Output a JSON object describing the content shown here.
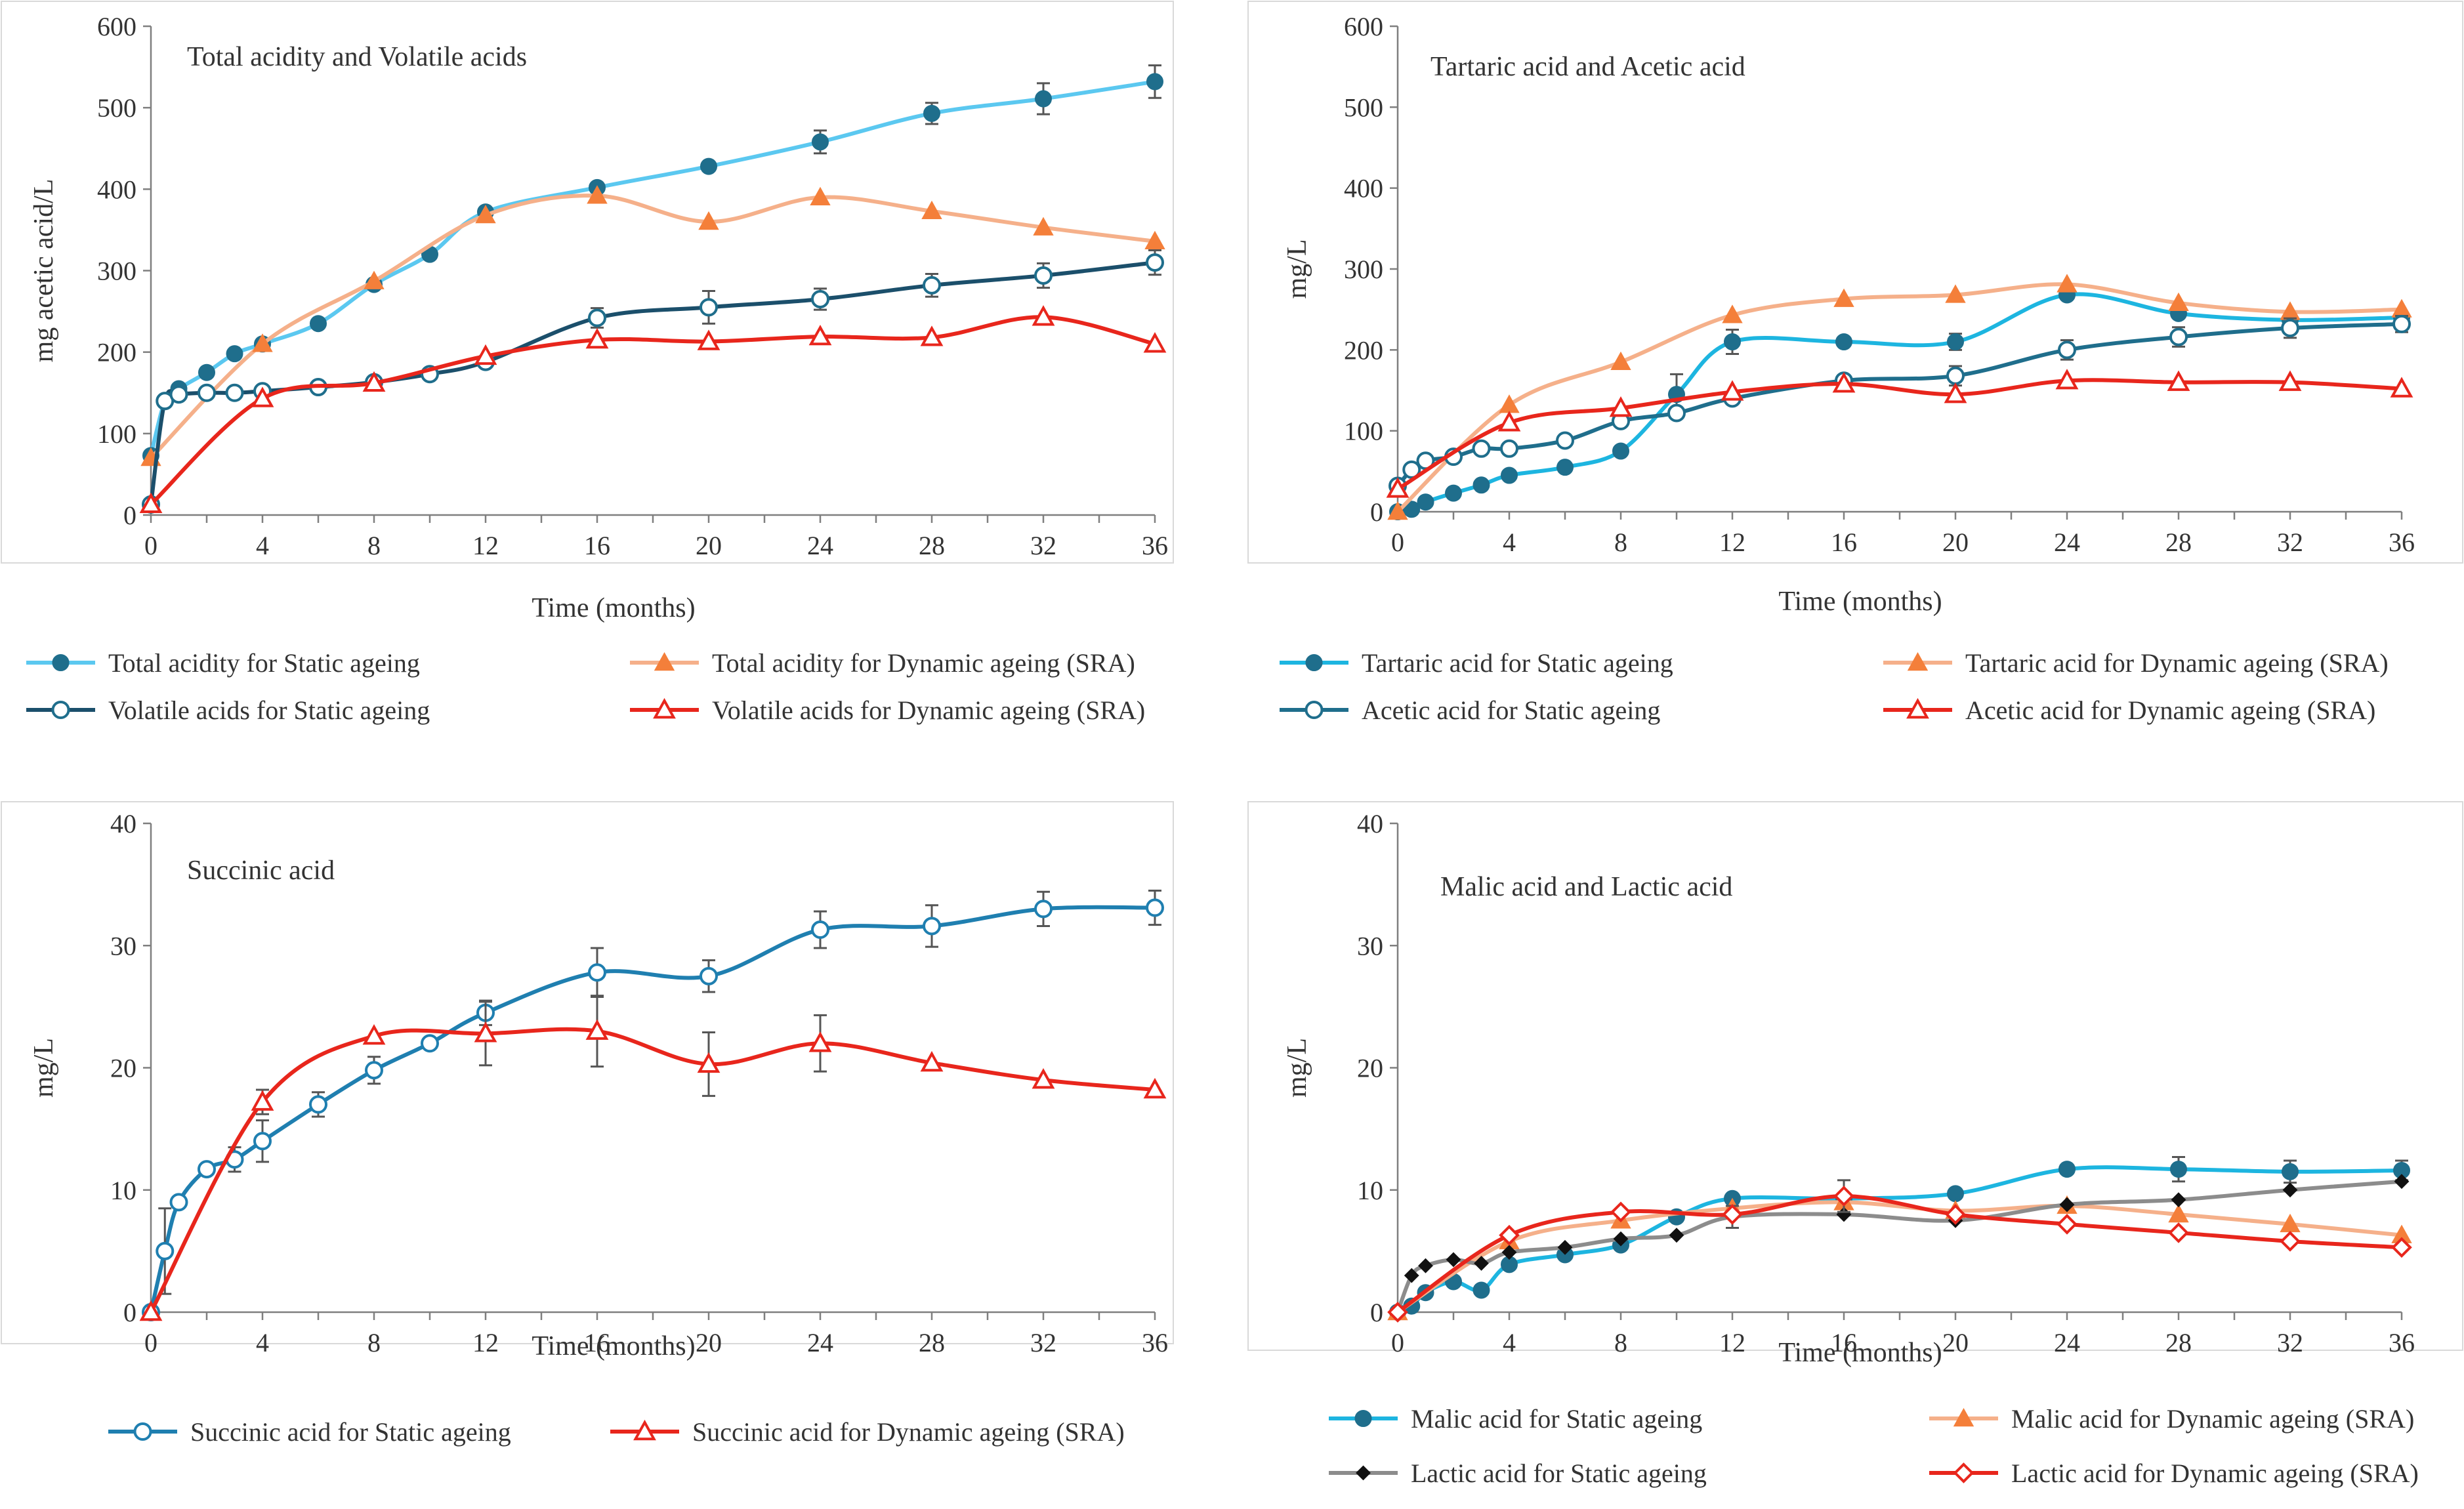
{
  "chart_data": [
    {
      "type": "line",
      "title": "Total acidity and Volatile acids",
      "xlabel": "Time (months)",
      "ylabel": "mg acetic acid/L",
      "xlim": [
        0,
        36
      ],
      "ylim": [
        0,
        600
      ],
      "xticks": [
        "0",
        "4",
        "8",
        "12",
        "16",
        "20",
        "24",
        "28",
        "32",
        "36"
      ],
      "yticks": [
        "0",
        "100",
        "200",
        "300",
        "400",
        "500",
        "600"
      ],
      "grid": false,
      "legend_position": "bottom",
      "series": [
        {
          "name": "Total acidity for Static ageing",
          "color": "#5bc8f0",
          "marker_color": "#1f6e8c",
          "marker": "circle-filled",
          "x": [
            0,
            0.5,
            1,
            2,
            3,
            4,
            6,
            8,
            10,
            12,
            16,
            20,
            24,
            28,
            32,
            36
          ],
          "y": [
            73,
            140,
            155,
            175,
            198,
            210,
            235,
            283,
            320,
            372,
            402,
            428,
            458,
            493,
            511,
            532
          ],
          "err": [
            0,
            0,
            0,
            0,
            0,
            0,
            0,
            0,
            0,
            0,
            0,
            0,
            14,
            13,
            19,
            20
          ]
        },
        {
          "name": "Total acidity for Dynamic ageing (SRA)",
          "color": "#f5b08a",
          "marker_color": "#f47f3a",
          "marker": "triangle-filled",
          "x": [
            0,
            4,
            8,
            12,
            16,
            20,
            24,
            28,
            32,
            36
          ],
          "y": [
            70,
            210,
            287,
            368,
            392,
            360,
            390,
            373,
            353,
            336
          ],
          "err": [
            0,
            0,
            0,
            0,
            0,
            0,
            0,
            0,
            0,
            0
          ]
        },
        {
          "name": "Volatile acids for Static ageing",
          "color": "#1b4f6b",
          "marker_color": "#1f6e8c",
          "marker": "circle-open",
          "x": [
            0,
            0.5,
            1,
            2,
            3,
            4,
            6,
            8,
            10,
            12,
            16,
            20,
            24,
            28,
            32,
            36
          ],
          "y": [
            13,
            140,
            148,
            150,
            150,
            152,
            157,
            163,
            173,
            188,
            242,
            255,
            265,
            282,
            294,
            310
          ],
          "err": [
            0,
            0,
            0,
            0,
            0,
            0,
            0,
            0,
            0,
            0,
            12,
            20,
            13,
            14,
            15,
            15
          ]
        },
        {
          "name": "Volatile acids for Dynamic ageing (SRA)",
          "color": "#e8261c",
          "marker_color": "#e8261c",
          "marker": "triangle-open",
          "x": [
            0,
            4,
            8,
            12,
            16,
            20,
            24,
            28,
            32,
            36
          ],
          "y": [
            13,
            143,
            162,
            195,
            215,
            213,
            219,
            218,
            243,
            210
          ],
          "err": [
            0,
            0,
            0,
            0,
            0,
            0,
            0,
            0,
            0,
            0
          ]
        }
      ]
    },
    {
      "type": "line",
      "title": "Tartaric acid and Acetic acid",
      "xlabel": "Time (months)",
      "ylabel": "mg/L",
      "xlim": [
        0,
        36
      ],
      "ylim": [
        0,
        600
      ],
      "xticks": [
        "0",
        "4",
        "8",
        "12",
        "16",
        "20",
        "24",
        "28",
        "32",
        "36"
      ],
      "yticks": [
        "0",
        "100",
        "200",
        "300",
        "400",
        "500",
        "600"
      ],
      "grid": false,
      "legend_position": "bottom",
      "series": [
        {
          "name": "Tartaric acid for Static ageing",
          "color": "#1db5e0",
          "marker_color": "#1f6e8c",
          "marker": "circle-filled",
          "x": [
            0,
            0.5,
            1,
            2,
            3,
            4,
            6,
            8,
            10,
            12,
            16,
            20,
            24,
            28,
            32,
            36
          ],
          "y": [
            0,
            3,
            12,
            23,
            33,
            45,
            55,
            75,
            145,
            210,
            210,
            210,
            268,
            245,
            237,
            240
          ],
          "err": [
            0,
            0,
            0,
            0,
            0,
            0,
            0,
            0,
            25,
            15,
            0,
            10,
            0,
            0,
            0,
            0
          ]
        },
        {
          "name": "Tartaric acid for Dynamic ageing (SRA)",
          "color": "#f5b08a",
          "marker_color": "#f47f3a",
          "marker": "triangle-filled",
          "x": [
            0,
            4,
            8,
            12,
            16,
            20,
            24,
            28,
            32,
            36
          ],
          "y": [
            0,
            132,
            185,
            243,
            263,
            268,
            281,
            258,
            247,
            250
          ],
          "err": [
            0,
            0,
            0,
            0,
            0,
            0,
            0,
            0,
            0,
            0
          ]
        },
        {
          "name": "Acetic acid for Static ageing",
          "color": "#1f6e8c",
          "marker_color": "#1f6e8c",
          "marker": "circle-open",
          "x": [
            0,
            0.5,
            1,
            2,
            3,
            4,
            6,
            8,
            10,
            12,
            16,
            20,
            24,
            28,
            32,
            36
          ],
          "y": [
            32,
            52,
            63,
            68,
            78,
            78,
            88,
            112,
            122,
            140,
            162,
            168,
            200,
            216,
            227,
            232
          ],
          "err": [
            0,
            0,
            0,
            0,
            0,
            0,
            0,
            0,
            0,
            0,
            0,
            12,
            12,
            12,
            12,
            10
          ]
        },
        {
          "name": "Acetic acid for Dynamic ageing (SRA)",
          "color": "#e8261c",
          "marker_color": "#e8261c",
          "marker": "triangle-open",
          "x": [
            0,
            4,
            8,
            12,
            16,
            20,
            24,
            28,
            32,
            36
          ],
          "y": [
            28,
            110,
            128,
            148,
            158,
            145,
            162,
            160,
            160,
            152
          ],
          "err": [
            0,
            0,
            0,
            0,
            0,
            0,
            0,
            0,
            0,
            0
          ]
        }
      ]
    },
    {
      "type": "line",
      "title": "Succinic acid",
      "xlabel": "Time (months)",
      "ylabel": "mg/L",
      "xlim": [
        0,
        36
      ],
      "ylim": [
        0,
        40
      ],
      "xticks": [
        "0",
        "4",
        "8",
        "12",
        "16",
        "20",
        "24",
        "28",
        "32",
        "36"
      ],
      "yticks": [
        "0",
        "10",
        "20",
        "30",
        "40"
      ],
      "grid": false,
      "legend_position": "bottom",
      "series": [
        {
          "name": "Succinic acid for Static ageing",
          "color": "#1f7fb0",
          "marker_color": "#1f7fb0",
          "marker": "circle-open",
          "x": [
            0,
            0.5,
            1,
            2,
            3,
            4,
            6,
            8,
            10,
            12,
            16,
            20,
            24,
            28,
            32,
            36
          ],
          "y": [
            0,
            5,
            9,
            11.7,
            12.5,
            14,
            17,
            19.8,
            22,
            24.5,
            27.8,
            27.5,
            31.3,
            31.6,
            33,
            33.1
          ],
          "err": [
            0,
            3.5,
            0,
            0,
            1,
            1.7,
            1,
            1.1,
            0,
            1,
            2,
            1.3,
            1.5,
            1.7,
            1.4,
            1.4
          ]
        },
        {
          "name": "Succinic acid for Dynamic ageing (SRA)",
          "color": "#e8261c",
          "marker_color": "#e8261c",
          "marker": "triangle-open",
          "x": [
            0,
            4,
            8,
            12,
            16,
            20,
            24,
            28,
            32,
            36
          ],
          "y": [
            0,
            17.2,
            22.6,
            22.8,
            23,
            20.3,
            22,
            20.4,
            19,
            18.2
          ],
          "err": [
            0,
            1,
            0,
            2.6,
            2.9,
            2.6,
            2.3,
            0,
            0,
            0
          ]
        }
      ]
    },
    {
      "type": "line",
      "title": "Malic acid and Lactic acid",
      "xlabel": "Time (months)",
      "ylabel": "mg/L",
      "xlim": [
        0,
        36
      ],
      "ylim": [
        0,
        40
      ],
      "xticks": [
        "0",
        "4",
        "8",
        "12",
        "16",
        "20",
        "24",
        "28",
        "32",
        "36"
      ],
      "yticks": [
        "0",
        "10",
        "20",
        "30",
        "40"
      ],
      "grid": false,
      "legend_position": "bottom",
      "series": [
        {
          "name": "Malic acid for Static ageing",
          "color": "#1db5e0",
          "marker_color": "#1f6e8c",
          "marker": "circle-filled",
          "x": [
            0,
            0.5,
            1,
            2,
            3,
            4,
            6,
            8,
            10,
            12,
            16,
            20,
            24,
            28,
            32,
            36
          ],
          "y": [
            0,
            0.5,
            1.6,
            2.5,
            1.8,
            3.9,
            4.7,
            5.5,
            7.8,
            9.3,
            9.3,
            9.7,
            11.7,
            11.7,
            11.5,
            11.6
          ],
          "err": [
            0,
            0,
            0,
            0,
            0,
            0,
            0,
            0,
            0,
            0,
            0,
            0,
            0,
            1,
            0.9,
            0.8
          ]
        },
        {
          "name": "Malic acid for Dynamic ageing (SRA)",
          "color": "#f5b08a",
          "marker_color": "#f47f3a",
          "marker": "triangle-filled",
          "x": [
            0,
            4,
            8,
            12,
            16,
            20,
            24,
            28,
            32,
            36
          ],
          "y": [
            0,
            5.8,
            7.5,
            8.5,
            9,
            8.3,
            8.7,
            8,
            7.2,
            6.3
          ],
          "err": [
            0,
            0,
            0,
            0,
            0,
            0,
            0,
            0,
            0,
            0
          ]
        },
        {
          "name": "Lactic acid for Static ageing",
          "color": "#8c8c8c",
          "marker_color": "#111111",
          "marker": "diamond-filled",
          "x": [
            0,
            0.5,
            1,
            2,
            3,
            4,
            6,
            8,
            10,
            12,
            16,
            20,
            24,
            28,
            32,
            36
          ],
          "y": [
            0,
            3,
            3.8,
            4.3,
            4,
            4.9,
            5.3,
            6,
            6.3,
            7.8,
            8,
            7.5,
            8.8,
            9.2,
            10,
            10.7
          ],
          "err": [
            0,
            0,
            0,
            0,
            0,
            0,
            0,
            0,
            0,
            0.9,
            0,
            0,
            0,
            0,
            0,
            0
          ]
        },
        {
          "name": "Lactic acid for Dynamic ageing (SRA)",
          "color": "#e8261c",
          "marker_color": "#e8261c",
          "marker": "diamond-open",
          "x": [
            0,
            4,
            8,
            12,
            16,
            20,
            24,
            28,
            32,
            36
          ],
          "y": [
            0,
            6.3,
            8.2,
            8,
            9.5,
            8,
            7.2,
            6.5,
            5.8,
            5.3
          ],
          "err": [
            0,
            0,
            0,
            0,
            1.3,
            0,
            0,
            0,
            0,
            0
          ]
        }
      ]
    }
  ]
}
